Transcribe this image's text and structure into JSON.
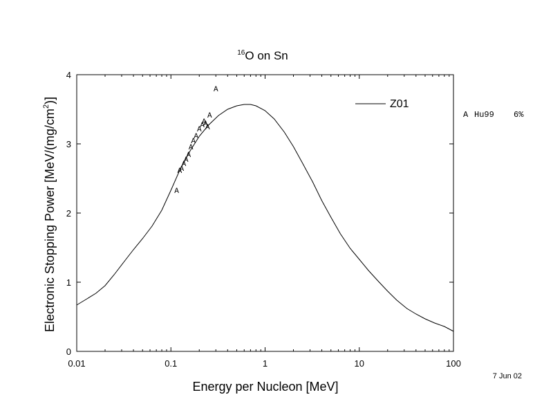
{
  "chart_data": {
    "type": "line",
    "title": {
      "superscript": "16",
      "main": "O on Sn"
    },
    "xlabel": "Energy per Nucleon [MeV]",
    "ylabel": {
      "main": "Electronic Stopping Power [MeV/(mg/cm",
      "superscript": "2",
      "suffix": ")]"
    },
    "xscale": "log",
    "xlim": [
      0.01,
      100
    ],
    "ylim": [
      0,
      4
    ],
    "xticks": [
      {
        "value": 0.01,
        "label": "0.01"
      },
      {
        "value": 0.1,
        "label": "0.1"
      },
      {
        "value": 1,
        "label": "1"
      },
      {
        "value": 10,
        "label": "10"
      },
      {
        "value": 100,
        "label": "100"
      }
    ],
    "yticks": [
      {
        "value": 0,
        "label": "0"
      },
      {
        "value": 1,
        "label": "1"
      },
      {
        "value": 2,
        "label": "2"
      },
      {
        "value": 3,
        "label": "3"
      },
      {
        "value": 4,
        "label": "4"
      }
    ],
    "grid": false,
    "legend_position": "top-right",
    "series": [
      {
        "name": "Z01",
        "kind": "line",
        "color": "#000000",
        "x": [
          0.01,
          0.0125,
          0.016,
          0.02,
          0.025,
          0.032,
          0.04,
          0.05,
          0.063,
          0.08,
          0.1,
          0.125,
          0.16,
          0.2,
          0.25,
          0.32,
          0.4,
          0.5,
          0.6,
          0.7,
          0.8,
          1.0,
          1.25,
          1.6,
          2.0,
          2.5,
          3.2,
          4.0,
          5.0,
          6.3,
          8.0,
          10,
          12.5,
          16,
          20,
          25,
          32,
          40,
          50,
          63,
          80,
          100
        ],
        "y": [
          0.67,
          0.75,
          0.84,
          0.95,
          1.11,
          1.3,
          1.47,
          1.63,
          1.81,
          2.04,
          2.33,
          2.63,
          2.9,
          3.11,
          3.27,
          3.41,
          3.5,
          3.55,
          3.57,
          3.57,
          3.55,
          3.48,
          3.36,
          3.17,
          2.96,
          2.72,
          2.45,
          2.18,
          1.94,
          1.7,
          1.49,
          1.33,
          1.17,
          1.01,
          0.87,
          0.74,
          0.62,
          0.54,
          0.47,
          0.41,
          0.36,
          0.29
        ]
      },
      {
        "name": "Hu99",
        "kind": "markers",
        "marker": "A",
        "x": [
          0.115,
          0.124,
          0.13,
          0.137,
          0.145,
          0.154,
          0.163,
          0.173,
          0.185,
          0.2,
          0.215,
          0.225,
          0.233,
          0.245,
          0.258,
          0.3
        ],
        "y": [
          2.33,
          2.62,
          2.65,
          2.72,
          2.78,
          2.85,
          2.96,
          3.05,
          3.12,
          3.22,
          3.28,
          3.33,
          3.3,
          3.25,
          3.42,
          3.8
        ]
      }
    ],
    "legend": [
      {
        "label": "Z01",
        "kind": "line"
      }
    ],
    "side_note": {
      "marker": "A",
      "source": "Hu99",
      "uncertainty": "6%"
    },
    "date_stamp": "7 Jun 02"
  }
}
